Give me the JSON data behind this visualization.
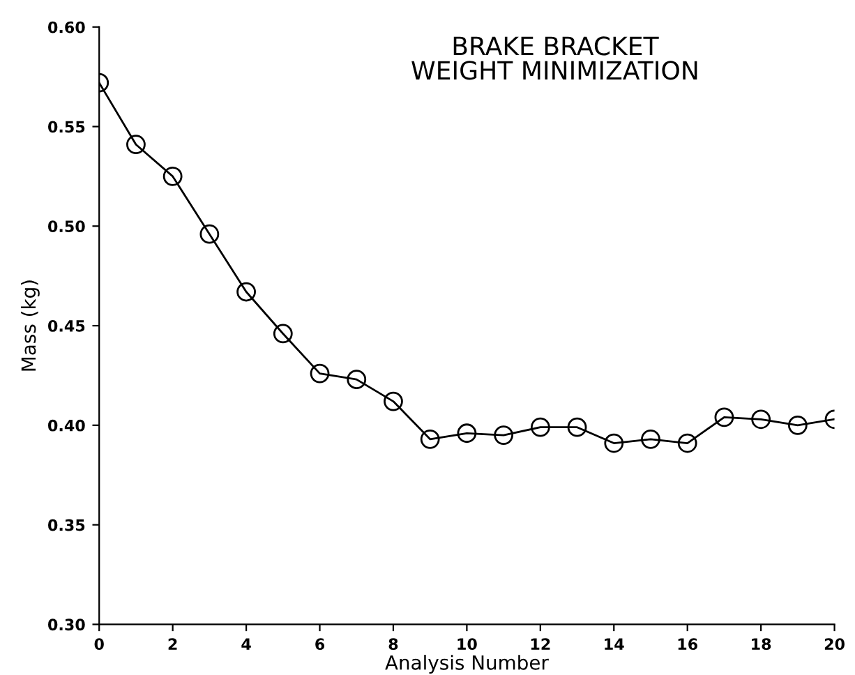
{
  "chart_data": {
    "type": "line",
    "title": "BRAKE BRACKET\nWEIGHT MINIMIZATION",
    "xlabel": "Analysis Number",
    "ylabel": "Mass (kg)",
    "x": [
      0,
      1,
      2,
      3,
      4,
      5,
      6,
      7,
      8,
      9,
      10,
      11,
      12,
      13,
      14,
      15,
      16,
      17,
      18,
      19,
      20
    ],
    "series": [
      {
        "color": "#000000",
        "values": [
          0.572,
          0.541,
          0.525,
          0.496,
          0.467,
          0.446,
          0.426,
          0.423,
          0.412,
          0.393,
          0.396,
          0.395,
          0.399,
          0.399,
          0.391,
          0.393,
          0.391,
          0.404,
          0.403,
          0.4,
          0.403
        ]
      }
    ],
    "xlim": [
      0,
      20
    ],
    "ylim": [
      0.3,
      0.6
    ],
    "xticks": [
      0,
      2,
      4,
      6,
      8,
      10,
      12,
      14,
      16,
      18,
      20
    ],
    "yticks": [
      {
        "value": 0.3,
        "label": "0.30"
      },
      {
        "value": 0.35,
        "label": "0.35"
      },
      {
        "value": 0.4,
        "label": "0.40"
      },
      {
        "value": 0.45,
        "label": "0.45"
      },
      {
        "value": 0.5,
        "label": "0.50"
      },
      {
        "value": 0.55,
        "label": "0.55"
      },
      {
        "value": 0.6,
        "label": "0.60"
      }
    ],
    "marker": "circle",
    "line_style": "solid",
    "grid": false,
    "legend": false
  }
}
